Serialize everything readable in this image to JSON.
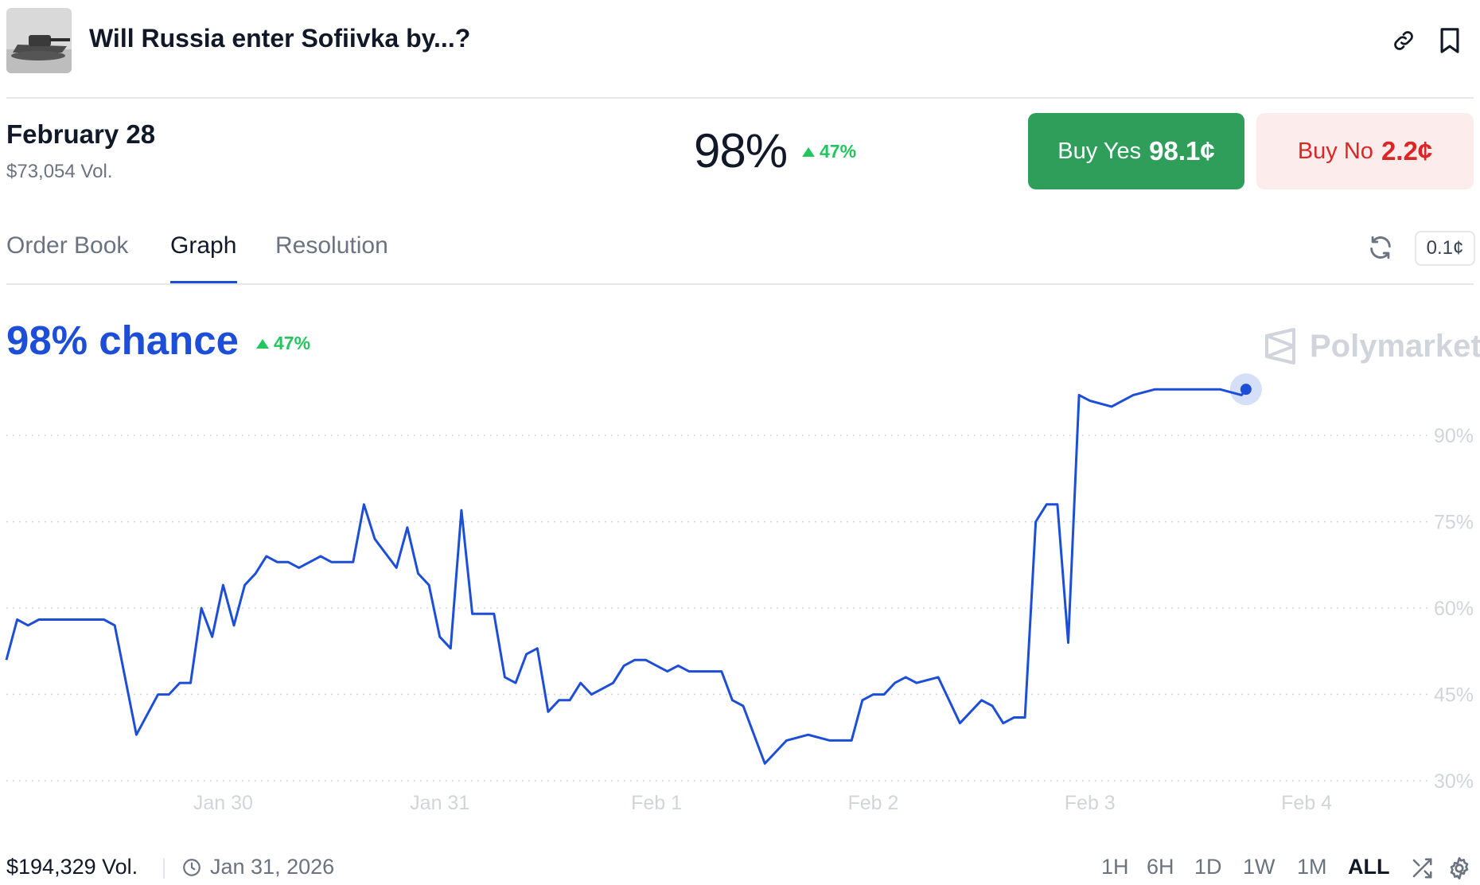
{
  "header": {
    "title": "Will Russia enter Sofiivka by...?",
    "icons": [
      "link-icon",
      "bookmark-icon"
    ]
  },
  "market": {
    "date": "February 28",
    "volume": "$73,054 Vol.",
    "probability": "98%",
    "change": "47%",
    "buy_yes_label": "Buy Yes",
    "buy_yes_price": "98.1¢",
    "buy_no_label": "Buy No",
    "buy_no_price": "2.2¢"
  },
  "tabs": [
    {
      "label": "Order Book"
    },
    {
      "label": "Graph",
      "active": true
    },
    {
      "label": "Resolution"
    }
  ],
  "price_unit": "0.1¢",
  "chart": {
    "chance_label": "98% chance",
    "change": "47%",
    "brand": "Polymarket"
  },
  "chart_data": {
    "type": "line",
    "series": [
      {
        "color": "#1d4ed8",
        "x": [
          29.0,
          29.05,
          29.1,
          29.15,
          29.3,
          29.45,
          29.5,
          29.6,
          29.7,
          29.75,
          29.8,
          29.85,
          29.9,
          29.95,
          30.0,
          30.05,
          30.1,
          30.15,
          30.2,
          30.25,
          30.3,
          30.35,
          30.4,
          30.45,
          30.5,
          30.55,
          30.6,
          30.65,
          30.7,
          30.8,
          30.85,
          30.9,
          30.95,
          31.0,
          31.05,
          31.1,
          31.15,
          31.2,
          31.25,
          31.3,
          31.35,
          31.4,
          31.45,
          31.5,
          31.55,
          31.6,
          31.65,
          31.7,
          31.8,
          31.85,
          31.9,
          31.95,
          32.0,
          32.05,
          32.1,
          32.15,
          32.2,
          32.25,
          32.3,
          32.35,
          32.4,
          32.5,
          32.6,
          32.7,
          32.8,
          32.85,
          32.9,
          32.95,
          33.0,
          33.05,
          33.1,
          33.15,
          33.2,
          33.3,
          33.4,
          33.5,
          33.55,
          33.6,
          33.65,
          33.7,
          33.75,
          33.8,
          33.85,
          33.9,
          33.95,
          34.0,
          34.1,
          34.2,
          34.3,
          34.4,
          34.5,
          34.6,
          34.7,
          34.72
        ],
        "y": [
          51,
          58,
          57,
          58,
          58,
          58,
          57,
          38,
          45,
          45,
          47,
          47,
          60,
          55,
          64,
          57,
          64,
          66,
          69,
          68,
          68,
          67,
          68,
          69,
          68,
          68,
          68,
          78,
          72,
          67,
          74,
          66,
          64,
          55,
          53,
          77,
          59,
          59,
          59,
          48,
          47,
          52,
          53,
          42,
          44,
          44,
          47,
          45,
          47,
          50,
          51,
          51,
          50,
          49,
          50,
          49,
          49,
          49,
          49,
          44,
          43,
          33,
          37,
          38,
          37,
          37,
          37,
          44,
          45,
          45,
          47,
          48,
          47,
          48,
          40,
          44,
          43,
          40,
          41,
          41,
          75,
          78,
          78,
          54,
          97,
          96,
          95,
          97,
          98,
          98,
          98,
          98,
          97,
          98
        ]
      }
    ],
    "x_ticks": [
      "Jan 30",
      "Jan 31",
      "Feb 1",
      "Feb 2",
      "Feb 3",
      "Feb 4"
    ],
    "y_ticks": [
      "90%",
      "75%",
      "60%",
      "45%",
      "30%"
    ],
    "ylim": [
      26,
      103
    ],
    "grid": true
  },
  "footer": {
    "volume": "$194,329 Vol.",
    "date": "Jan 31, 2026",
    "ranges": [
      "1H",
      "6H",
      "1D",
      "1W",
      "1M",
      "ALL"
    ],
    "active_range": "ALL"
  }
}
